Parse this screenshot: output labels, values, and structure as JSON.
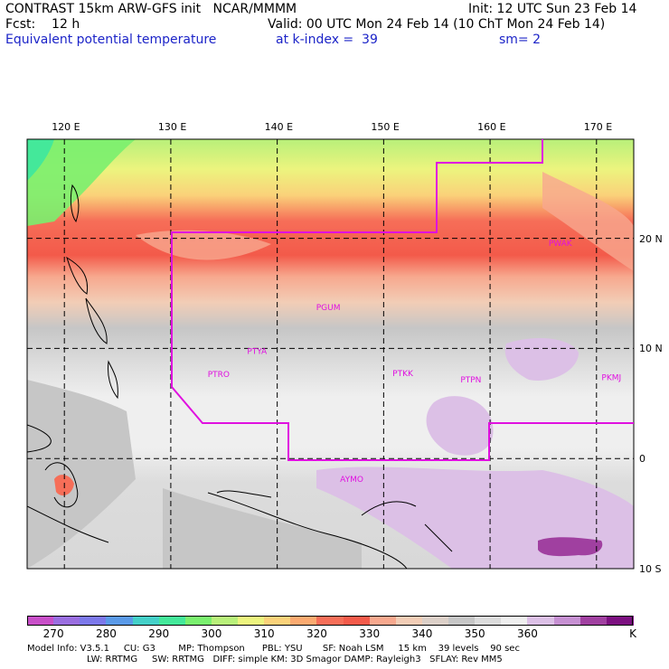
{
  "header": {
    "model": "CONTRAST 15km ARW-GFS init   NCAR/MMMM",
    "init": "Init: 12 UTC Sun 23 Feb 14",
    "fcst": "Fcst:    12 h",
    "valid": "Valid: 00 UTC Mon 24 Feb 14 (10 ChT Mon 24 Feb 14)",
    "field": "Equivalent potential temperature",
    "level": "at k-index =  39",
    "smooth": "sm= 2"
  },
  "map": {
    "lon_labels": [
      "120 E",
      "130 E",
      "140 E",
      "150 E",
      "160 E",
      "170 E"
    ],
    "lat_labels": [
      "20 N",
      "10 N",
      "0",
      "10 S"
    ],
    "lon_range": [
      116.5,
      173.5
    ],
    "lat_range": [
      -10,
      29
    ],
    "stations": [
      {
        "id": "PWAK",
        "lon": 166.6,
        "lat": 19.3
      },
      {
        "id": "PGUM",
        "lon": 144.8,
        "lat": 13.5
      },
      {
        "id": "PTYA",
        "lon": 138.1,
        "lat": 9.5
      },
      {
        "id": "PTRO",
        "lon": 134.5,
        "lat": 7.4
      },
      {
        "id": "PTKK",
        "lon": 151.8,
        "lat": 7.5
      },
      {
        "id": "PTPN",
        "lon": 158.2,
        "lat": 6.9
      },
      {
        "id": "PKMJ",
        "lon": 171.4,
        "lat": 7.1
      },
      {
        "id": "AYMO",
        "lon": 147.0,
        "lat": -2.1
      }
    ],
    "region_color": "#e010e0"
  },
  "colorbar": {
    "ticks": [
      "270",
      "280",
      "290",
      "300",
      "310",
      "320",
      "330",
      "340",
      "350",
      "360"
    ],
    "unit": "K",
    "colors": [
      "#c84fc8",
      "#9a6ee0",
      "#7c78ea",
      "#5a9ae8",
      "#44d0c8",
      "#44e89a",
      "#7af06e",
      "#b8f07a",
      "#ecf47e",
      "#fad27a",
      "#fbaa70",
      "#f66e58",
      "#f35a4a",
      "#f7a88e",
      "#f2cdb6",
      "#dcd0c8",
      "#c6c6c6",
      "#dcdcdc",
      "#efefef",
      "#dcc0e6",
      "#c690d2",
      "#a040a0",
      "#7c1080"
    ]
  },
  "footer": {
    "line1": "Model Info: V3.5.1     CU: G3        MP: Thompson      PBL: YSU       SF: Noah LSM     15 km    39 levels    90 sec",
    "line2": "LW: RRTMG     SW: RRTMG   DIFF: simple KM: 3D Smagor DAMP: Rayleigh3   SFLAY: Rev MM5"
  }
}
